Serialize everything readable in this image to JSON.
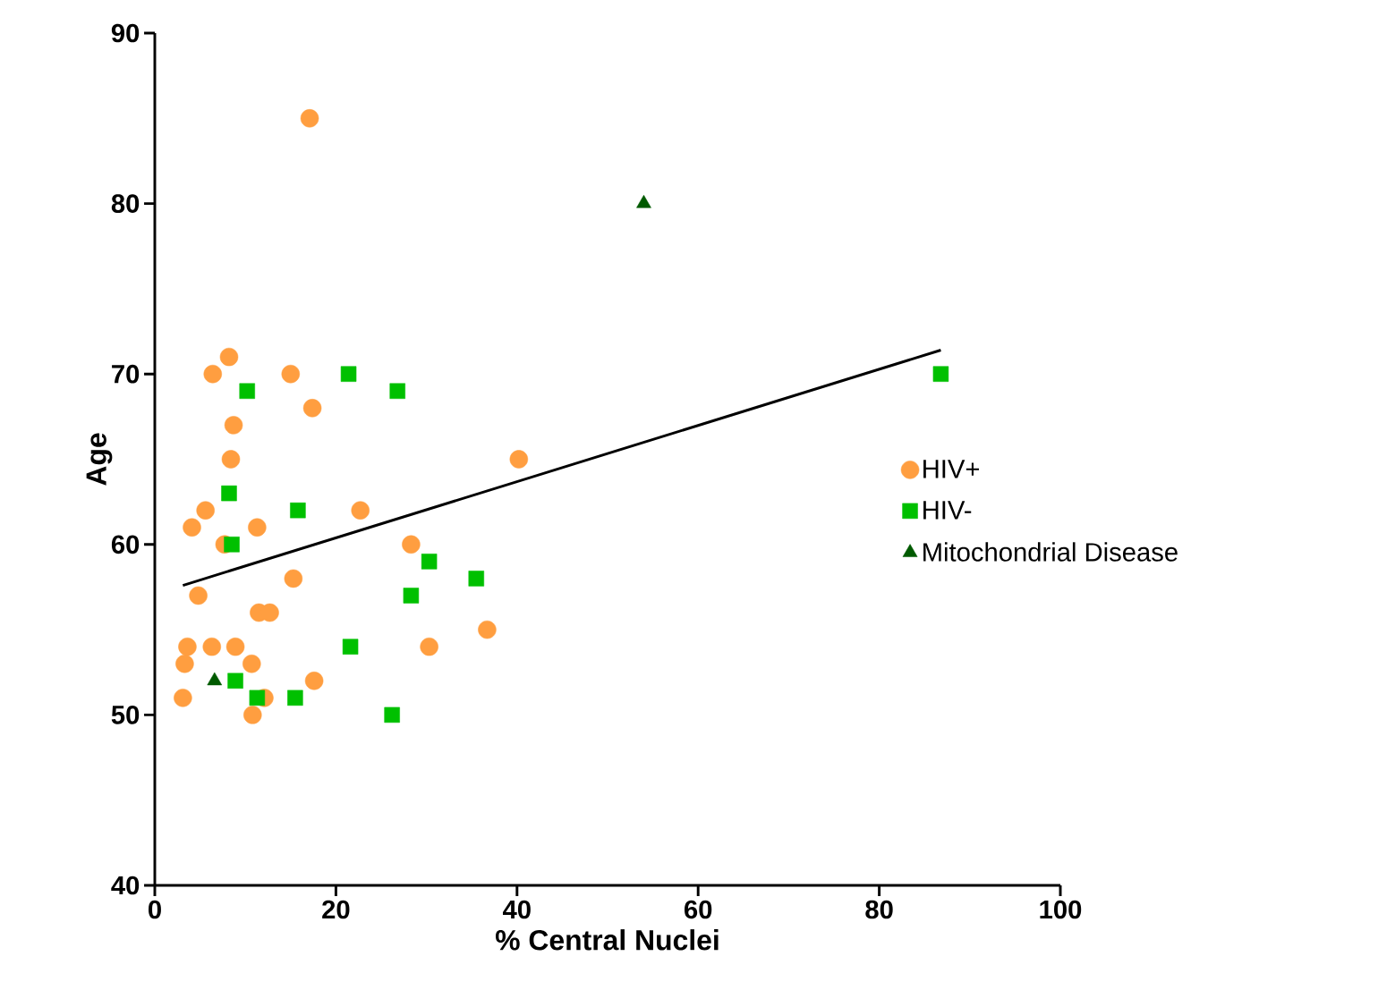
{
  "chart_data": {
    "type": "scatter",
    "xlabel": "% Central Nuclei",
    "ylabel": "Age",
    "xlim": [
      0,
      100
    ],
    "ylim": [
      40,
      90
    ],
    "xticks": [
      0,
      20,
      40,
      60,
      80,
      100
    ],
    "yticks": [
      40,
      50,
      60,
      70,
      80,
      90
    ],
    "grid": false,
    "legend": "right",
    "series": [
      {
        "name": "HIV+",
        "color": "#ff9e40",
        "marker": "circle",
        "x": [
          17.1,
          6.4,
          8.2,
          15.0,
          17.4,
          8.7,
          8.4,
          40.2,
          5.6,
          4.1,
          11.3,
          22.7,
          7.7,
          28.3,
          15.3,
          4.8,
          11.5,
          12.7,
          3.6,
          6.3,
          8.9,
          30.3,
          36.7,
          3.3,
          10.7,
          17.6,
          3.1,
          12.1,
          10.8
        ],
        "values": [
          85,
          70,
          71,
          70,
          68,
          67,
          65,
          65,
          62,
          61,
          61,
          62,
          60,
          60,
          58,
          57,
          56,
          56,
          54,
          54,
          54,
          54,
          55,
          53,
          53,
          52,
          51,
          51,
          50
        ]
      },
      {
        "name": "HIV-",
        "color": "#00c000",
        "marker": "square",
        "x": [
          10.2,
          21.4,
          26.8,
          8.2,
          8.5,
          15.8,
          30.3,
          35.5,
          28.3,
          21.6,
          8.9,
          11.3,
          15.5,
          26.2,
          86.8
        ],
        "values": [
          69,
          70,
          69,
          63,
          60,
          62,
          59,
          58,
          57,
          54,
          52,
          51,
          51,
          50,
          70
        ]
      },
      {
        "name": "Mitochondrial Disease",
        "color": "#005a00",
        "marker": "triangle",
        "x": [
          6.6,
          54.0
        ],
        "values": [
          52,
          80
        ]
      },
      {
        "type": "line",
        "color": "#000000",
        "marker": "none",
        "x": [
          3.1,
          86.8
        ],
        "values": [
          57.6,
          71.4
        ]
      }
    ]
  }
}
